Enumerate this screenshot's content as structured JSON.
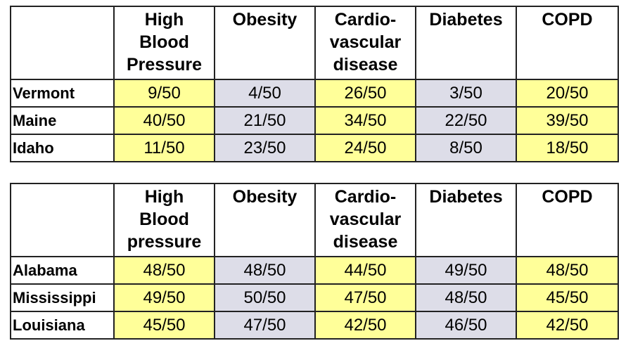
{
  "colors": {
    "cell_yellow": "#ffff99",
    "cell_gray": "#dddde8",
    "border": "#222222"
  },
  "tables": [
    {
      "headers": [
        [
          "High",
          "Blood",
          "Pressure"
        ],
        [
          "Obesity"
        ],
        [
          "Cardio-",
          "vascular",
          "disease"
        ],
        [
          "Diabetes"
        ],
        [
          "COPD"
        ]
      ],
      "rows": [
        {
          "state": "Vermont",
          "values": [
            "9/50",
            "4/50",
            "26/50",
            "3/50",
            "20/50"
          ]
        },
        {
          "state": "Maine",
          "values": [
            "40/50",
            "21/50",
            "34/50",
            "22/50",
            "39/50"
          ]
        },
        {
          "state": "Idaho",
          "values": [
            "11/50",
            "23/50",
            "24/50",
            "8/50",
            "18/50"
          ]
        }
      ]
    },
    {
      "headers": [
        [
          "High",
          "Blood",
          "pressure"
        ],
        [
          "Obesity"
        ],
        [
          "Cardio-",
          "vascular",
          "disease"
        ],
        [
          "Diabetes"
        ],
        [
          "COPD"
        ]
      ],
      "rows": [
        {
          "state": "Alabama",
          "values": [
            "48/50",
            "48/50",
            "44/50",
            "49/50",
            "48/50"
          ]
        },
        {
          "state": "Mississippi",
          "values": [
            "49/50",
            "50/50",
            "47/50",
            "48/50",
            "45/50"
          ]
        },
        {
          "state": "Louisiana",
          "values": [
            "45/50",
            "47/50",
            "42/50",
            "46/50",
            "42/50"
          ]
        }
      ]
    }
  ]
}
